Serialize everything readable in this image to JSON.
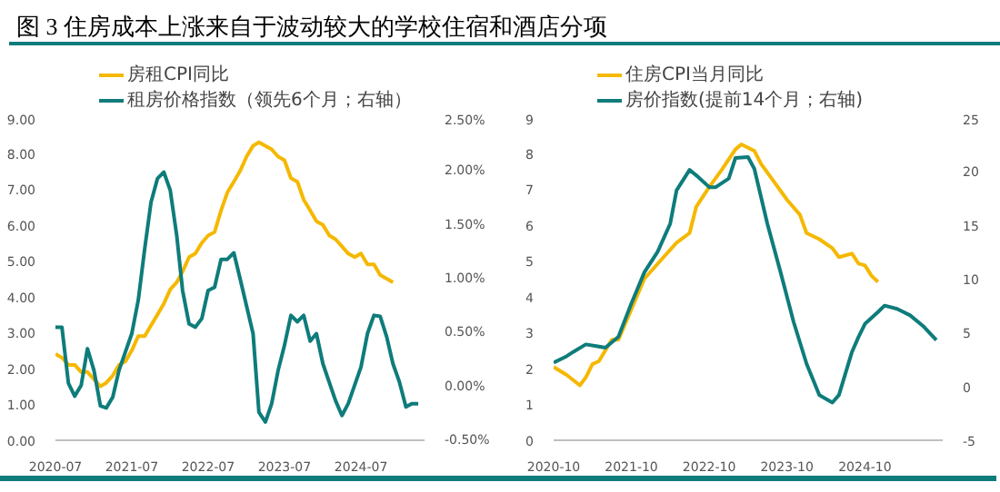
{
  "chart_data": [
    {
      "type": "line",
      "title": "图 3  住房成本上涨来自于波动较大的学校住宿和酒店分项",
      "legend": "top",
      "grid": false,
      "marker": "none",
      "line_style": "solid",
      "xlim": [
        "2020-07",
        "2025-05"
      ],
      "xticks": [
        "2020-07",
        "2021-07",
        "2022-07",
        "2023-07",
        "2024-07"
      ],
      "ylim": [
        0,
        9
      ],
      "yticks": [
        {
          "value": 0,
          "label": "0.00"
        },
        {
          "value": 1,
          "label": "1.00"
        },
        {
          "value": 2,
          "label": "2.00"
        },
        {
          "value": 3,
          "label": "3.00"
        },
        {
          "value": 4,
          "label": "4.00"
        },
        {
          "value": 5,
          "label": "5.00"
        },
        {
          "value": 6,
          "label": "6.00"
        },
        {
          "value": 7,
          "label": "7.00"
        },
        {
          "value": 8,
          "label": "8.00"
        },
        {
          "value": 9,
          "label": "9.00"
        }
      ],
      "y2lim": [
        -0.5,
        2.5
      ],
      "y2ticks": [
        {
          "value": -0.5,
          "label": "-0.50%"
        },
        {
          "value": 0,
          "label": "0.00%"
        },
        {
          "value": 0.5,
          "label": "0.50%"
        },
        {
          "value": 1,
          "label": "1.00%"
        },
        {
          "value": 1.5,
          "label": "1.50%"
        },
        {
          "value": 2,
          "label": "2.00%"
        },
        {
          "value": 2.5,
          "label": "2.50%"
        }
      ],
      "series": [
        {
          "name": "房租CPI同比",
          "color": "#f5b800",
          "x": [
            "2020-07",
            "2020-08",
            "2020-09",
            "2020-10",
            "2020-11",
            "2020-12",
            "2021-01",
            "2021-02",
            "2021-03",
            "2021-04",
            "2021-05",
            "2021-06",
            "2021-07",
            "2021-08",
            "2021-09",
            "2021-10",
            "2021-11",
            "2021-12",
            "2022-01",
            "2022-02",
            "2022-03",
            "2022-04",
            "2022-05",
            "2022-06",
            "2022-07",
            "2022-08",
            "2022-09",
            "2022-10",
            "2022-11",
            "2022-12",
            "2023-01",
            "2023-02",
            "2023-03",
            "2023-04",
            "2023-05",
            "2023-06",
            "2023-07",
            "2023-08",
            "2023-09",
            "2023-10",
            "2023-11",
            "2023-12",
            "2024-01",
            "2024-02",
            "2024-03",
            "2024-04",
            "2024-05",
            "2024-06",
            "2024-07",
            "2024-08",
            "2024-09",
            "2024-10",
            "2024-11",
            "2024-12"
          ],
          "values": [
            2.4,
            2.3,
            2.1,
            2.1,
            1.9,
            1.9,
            1.7,
            1.5,
            1.6,
            1.8,
            2.1,
            2.2,
            2.5,
            2.9,
            2.9,
            3.2,
            3.5,
            3.8,
            4.2,
            4.4,
            4.7,
            5.1,
            5.2,
            5.5,
            5.7,
            5.8,
            6.4,
            6.9,
            7.2,
            7.5,
            7.9,
            8.2,
            8.3,
            8.2,
            8.1,
            7.9,
            7.8,
            7.3,
            7.2,
            6.7,
            6.4,
            6.1,
            6.0,
            5.7,
            5.6,
            5.4,
            5.2,
            5.1,
            5.2,
            4.9,
            4.9,
            4.6,
            4.5,
            4.4
          ]
        },
        {
          "name": "租房价格指数（领先6个月；右轴）",
          "color": "#0e7c7b",
          "axis": "y2",
          "x": [
            "2020-07",
            "2020-08",
            "2020-09",
            "2020-10",
            "2020-11",
            "2020-12",
            "2021-01",
            "2021-02",
            "2021-03",
            "2021-04",
            "2021-05",
            "2021-07",
            "2021-08",
            "2021-09",
            "2021-10",
            "2021-11",
            "2021-12",
            "2022-01",
            "2022-02",
            "2022-03",
            "2022-04",
            "2022-05",
            "2022-06",
            "2022-07",
            "2022-08",
            "2022-09",
            "2022-10",
            "2022-11",
            "2022-12",
            "2023-02",
            "2023-03",
            "2023-04",
            "2023-05",
            "2023-06",
            "2023-07",
            "2023-08",
            "2023-09",
            "2023-10",
            "2023-11",
            "2023-12",
            "2024-01",
            "2024-03",
            "2024-04",
            "2024-05",
            "2024-07",
            "2024-08",
            "2024-09",
            "2024-10",
            "2024-11",
            "2024-12",
            "2025-01",
            "2025-02",
            "2025-03",
            "2025-04"
          ],
          "values": [
            0.55,
            0.55,
            0.03,
            -0.09,
            0.01,
            0.35,
            0.15,
            -0.18,
            -0.2,
            -0.1,
            0.15,
            0.49,
            0.8,
            1.28,
            1.71,
            1.93,
            1.99,
            1.82,
            1.4,
            0.89,
            0.58,
            0.55,
            0.63,
            0.89,
            0.92,
            1.18,
            1.18,
            1.24,
            1.0,
            0.49,
            -0.24,
            -0.33,
            -0.16,
            0.15,
            0.38,
            0.66,
            0.6,
            0.66,
            0.42,
            0.49,
            0.21,
            -0.13,
            -0.27,
            -0.16,
            0.18,
            0.49,
            0.66,
            0.65,
            0.46,
            0.21,
            0.04,
            -0.19,
            -0.16,
            -0.16
          ]
        }
      ]
    },
    {
      "type": "line",
      "legend": "top",
      "grid": false,
      "marker": "none",
      "line_style": "solid",
      "xlim": [
        "2020-10",
        "2025-10"
      ],
      "xticks": [
        "2020-10",
        "2021-10",
        "2022-10",
        "2023-10",
        "2024-10"
      ],
      "ylim": [
        0,
        9
      ],
      "yticks": [
        0,
        1,
        2,
        3,
        4,
        5,
        6,
        7,
        8,
        9
      ],
      "y2lim": [
        -5,
        25
      ],
      "y2ticks": [
        -5,
        0,
        5,
        10,
        15,
        20,
        25
      ],
      "series": [
        {
          "name": "住房CPI当月同比",
          "color": "#f5b800",
          "x": [
            "2020-10",
            "2020-12",
            "2021-02",
            "2021-03",
            "2021-04",
            "2021-05",
            "2021-07",
            "2021-08",
            "2021-10",
            "2021-12",
            "2022-03",
            "2022-05",
            "2022-07",
            "2022-08",
            "2022-10",
            "2022-12",
            "2023-02",
            "2023-03",
            "2023-05",
            "2023-06",
            "2023-08",
            "2023-10",
            "2023-12",
            "2024-01",
            "2024-03",
            "2024-05",
            "2024-06",
            "2024-08",
            "2024-09",
            "2024-10",
            "2024-11",
            "2024-12"
          ],
          "values": [
            2.04,
            1.82,
            1.53,
            1.75,
            2.12,
            2.2,
            2.8,
            2.8,
            3.65,
            4.5,
            5.1,
            5.5,
            5.77,
            6.5,
            7.05,
            7.55,
            8.1,
            8.24,
            8.06,
            7.7,
            7.2,
            6.7,
            6.28,
            5.77,
            5.6,
            5.35,
            5.1,
            5.2,
            4.92,
            4.87,
            4.58,
            4.41
          ]
        },
        {
          "name": "房价指数(提前14个月；右轴)",
          "color": "#0e7c7b",
          "axis": "y2",
          "x": [
            "2020-10",
            "2020-12",
            "2021-01",
            "2021-03",
            "2021-05",
            "2021-06",
            "2021-08",
            "2021-10",
            "2021-12",
            "2022-02",
            "2022-04",
            "2022-05",
            "2022-07",
            "2022-08",
            "2022-10",
            "2022-11",
            "2023-01",
            "2023-02",
            "2023-04",
            "2023-05",
            "2023-07",
            "2023-09",
            "2023-11",
            "2024-01",
            "2024-03",
            "2024-05",
            "2024-06",
            "2024-08",
            "2024-09",
            "2024-10",
            "2024-12",
            "2025-01",
            "2025-03",
            "2025-05",
            "2025-07",
            "2025-09"
          ],
          "values": [
            2.2,
            2.8,
            3.2,
            3.9,
            3.7,
            3.6,
            4.6,
            7.7,
            10.6,
            12.5,
            15.1,
            18.2,
            20.1,
            19.6,
            18.5,
            18.5,
            19.3,
            21.2,
            21.3,
            20.2,
            15.1,
            10.6,
            6.0,
            2.1,
            -0.8,
            -1.5,
            -0.8,
            3.2,
            4.6,
            5.8,
            6.9,
            7.5,
            7.2,
            6.6,
            5.6,
            4.3
          ]
        }
      ]
    }
  ]
}
